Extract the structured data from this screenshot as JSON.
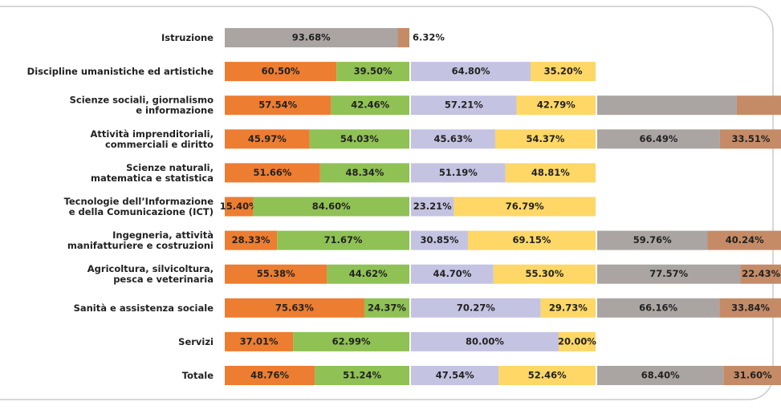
{
  "chart_data": {
    "type": "bar",
    "stacked": true,
    "percent": true,
    "categories": [
      [
        "Istruzione"
      ],
      [
        "Discipline umanistiche ed artistiche"
      ],
      [
        "Scienze sociali, giornalismo",
        "e informazione"
      ],
      [
        "Attività imprenditoriali,",
        "commerciali e diritto"
      ],
      [
        "Scienze naturali,",
        "matematica e statistica"
      ],
      [
        "Tecnologie dell’Informazione",
        "e della Comunicazione  (ICT)"
      ],
      [
        "Ingegneria, attività",
        "manifatturiere e costruzioni"
      ],
      [
        "Agricoltura, silvicoltura,",
        "pesca e veterinaria"
      ],
      [
        "Sanità e assistenza sociale"
      ],
      [
        "Servizi"
      ],
      [
        "Totale"
      ]
    ],
    "series": [
      {
        "stack": 0,
        "color": "#ed7d31",
        "values": [
          null,
          60.5,
          57.54,
          45.97,
          51.66,
          15.4,
          28.33,
          55.38,
          75.63,
          37.01,
          48.76
        ],
        "value_labels": [
          null,
          "60.50%",
          "57.54%",
          "45.97%",
          "51.66%",
          "15.40%",
          "28.33%",
          "55.38%",
          "75.63%",
          "37.01%",
          "48.76%"
        ]
      },
      {
        "stack": 0,
        "color": "#8fc154",
        "values": [
          null,
          39.5,
          42.46,
          54.03,
          48.34,
          84.6,
          71.67,
          44.62,
          24.37,
          62.99,
          51.24
        ],
        "value_labels": [
          null,
          "39.50%",
          "42.46%",
          "54.03%",
          "48.34%",
          "84.60%",
          "71.67%",
          "44.62%",
          "24.37%",
          "62.99%",
          "51.24%"
        ]
      },
      {
        "stack": 1,
        "color": "#c5c3e2",
        "values": [
          null,
          64.8,
          57.21,
          45.63,
          51.19,
          23.21,
          30.85,
          44.7,
          70.27,
          80.0,
          47.54
        ],
        "value_labels": [
          null,
          "64.80%",
          "57.21%",
          "45.63%",
          "51.19%",
          "23.21%",
          "30.85%",
          "44.70%",
          "70.27%",
          "80.00%",
          "47.54%"
        ]
      },
      {
        "stack": 1,
        "color": "#fed766",
        "values": [
          null,
          35.2,
          42.79,
          54.37,
          48.81,
          76.79,
          69.15,
          55.3,
          29.73,
          20.0,
          52.46
        ],
        "value_labels": [
          null,
          "35.20%",
          "42.79%",
          "54.37%",
          "48.81%",
          "76.79%",
          "69.15%",
          "55.30%",
          "29.73%",
          "20.00%",
          "52.46%"
        ]
      },
      {
        "stack": 2,
        "color": "#aaa5a3",
        "values": [
          null,
          null,
          75.5,
          66.49,
          null,
          null,
          59.76,
          77.57,
          66.16,
          null,
          68.4
        ],
        "value_labels": [
          null,
          null,
          null,
          "66.49%",
          null,
          null,
          "59.76%",
          "77.57%",
          "66.16%",
          null,
          "68.40%"
        ]
      },
      {
        "stack": 2,
        "color": "#c58b67",
        "values": [
          null,
          null,
          24.5,
          33.51,
          null,
          null,
          40.24,
          22.43,
          33.84,
          null,
          31.6
        ],
        "value_labels": [
          null,
          null,
          null,
          "33.51%",
          null,
          null,
          "40.24%",
          "22.43%",
          "33.84%",
          null,
          "31.60%"
        ]
      },
      {
        "stack": 0,
        "color": "#aaa5a3",
        "values": [
          93.68,
          null,
          null,
          null,
          null,
          null,
          null,
          null,
          null,
          null,
          null
        ],
        "value_labels": [
          "93.68%",
          null,
          null,
          null,
          null,
          null,
          null,
          null,
          null,
          null,
          null
        ]
      },
      {
        "stack": 0,
        "color": "#c58b67",
        "values": [
          6.32,
          null,
          null,
          null,
          null,
          null,
          null,
          null,
          null,
          null,
          null
        ],
        "value_labels": [
          "6.32%",
          null,
          null,
          null,
          null,
          null,
          null,
          null,
          null,
          null,
          null
        ]
      }
    ]
  }
}
